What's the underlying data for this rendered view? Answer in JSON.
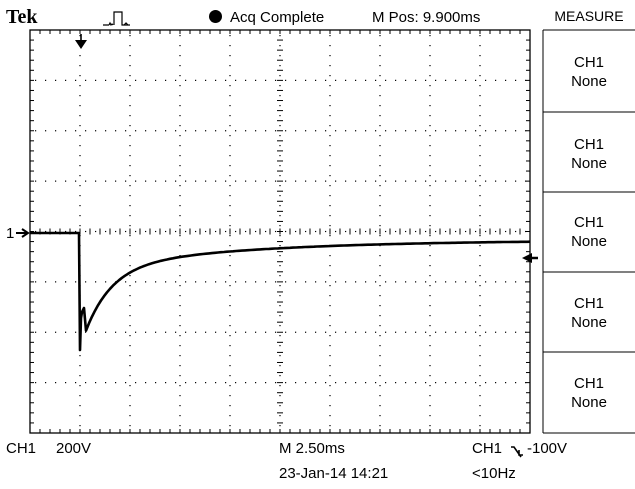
{
  "header": {
    "brand": "Tek",
    "acq_status": "Acq Complete",
    "m_pos": "M Pos: 9.900ms"
  },
  "menu": {
    "title": "MEASURE",
    "buttons": [
      {
        "line1": "CH1",
        "line2": "None"
      },
      {
        "line1": "CH1",
        "line2": "None"
      },
      {
        "line1": "CH1",
        "line2": "None"
      },
      {
        "line1": "CH1",
        "line2": "None"
      },
      {
        "line1": "CH1",
        "line2": "None"
      }
    ]
  },
  "channel_marker": {
    "label": "1"
  },
  "footer": {
    "ch1": "CH1",
    "ch1_scale": "200V",
    "time_base": "M 2.50ms",
    "trigger_source": "CH1",
    "trigger_slope_icon": "falling-edge-icon",
    "trigger_level": "-100V",
    "date_time": "23-Jan-14 14:21",
    "frequency": "<10Hz"
  },
  "colors": {
    "trace": "#000000",
    "background": "#ffffff",
    "grid": "#000000"
  }
}
